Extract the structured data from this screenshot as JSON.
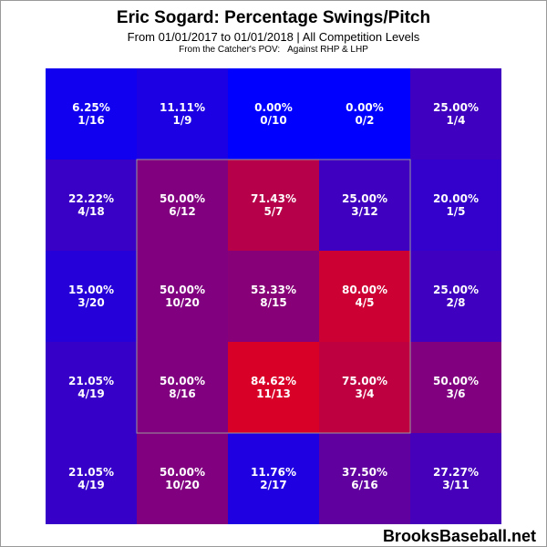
{
  "title": "Eric Sogard: Percentage Swings/Pitch",
  "subtitle": "From 01/01/2017 to 01/01/2018 | All Competition Levels",
  "pov": "From the Catcher's POV:",
  "split": "Against RHP & LHP",
  "watermark": "BrooksBaseball.net",
  "chart_data": {
    "type": "heatmap",
    "title": "Eric Sogard: Percentage Swings/Pitch",
    "rows": 5,
    "cols": 5,
    "strike_zone": "inner 3x3 cells",
    "colors": {
      "low": "#0000ff",
      "high": "#ff0000",
      "zone_outline": "#9a9a9a"
    },
    "cells": [
      [
        {
          "pct": "6.25%",
          "ratio": "1/16",
          "value": 6.25
        },
        {
          "pct": "11.11%",
          "ratio": "1/9",
          "value": 11.11
        },
        {
          "pct": "0.00%",
          "ratio": "0/10",
          "value": 0.0
        },
        {
          "pct": "0.00%",
          "ratio": "0/2",
          "value": 0.0
        },
        {
          "pct": "25.00%",
          "ratio": "1/4",
          "value": 25.0
        }
      ],
      [
        {
          "pct": "22.22%",
          "ratio": "4/18",
          "value": 22.22
        },
        {
          "pct": "50.00%",
          "ratio": "6/12",
          "value": 50.0
        },
        {
          "pct": "71.43%",
          "ratio": "5/7",
          "value": 71.43
        },
        {
          "pct": "25.00%",
          "ratio": "3/12",
          "value": 25.0
        },
        {
          "pct": "20.00%",
          "ratio": "1/5",
          "value": 20.0
        }
      ],
      [
        {
          "pct": "15.00%",
          "ratio": "3/20",
          "value": 15.0
        },
        {
          "pct": "50.00%",
          "ratio": "10/20",
          "value": 50.0
        },
        {
          "pct": "53.33%",
          "ratio": "8/15",
          "value": 53.33
        },
        {
          "pct": "80.00%",
          "ratio": "4/5",
          "value": 80.0
        },
        {
          "pct": "25.00%",
          "ratio": "2/8",
          "value": 25.0
        }
      ],
      [
        {
          "pct": "21.05%",
          "ratio": "4/19",
          "value": 21.05
        },
        {
          "pct": "50.00%",
          "ratio": "8/16",
          "value": 50.0
        },
        {
          "pct": "84.62%",
          "ratio": "11/13",
          "value": 84.62
        },
        {
          "pct": "75.00%",
          "ratio": "3/4",
          "value": 75.0
        },
        {
          "pct": "50.00%",
          "ratio": "3/6",
          "value": 50.0
        }
      ],
      [
        {
          "pct": "21.05%",
          "ratio": "4/19",
          "value": 21.05
        },
        {
          "pct": "50.00%",
          "ratio": "10/20",
          "value": 50.0
        },
        {
          "pct": "11.76%",
          "ratio": "2/17",
          "value": 11.76
        },
        {
          "pct": "37.50%",
          "ratio": "6/16",
          "value": 37.5
        },
        {
          "pct": "27.27%",
          "ratio": "3/11",
          "value": 27.27
        }
      ]
    ]
  }
}
